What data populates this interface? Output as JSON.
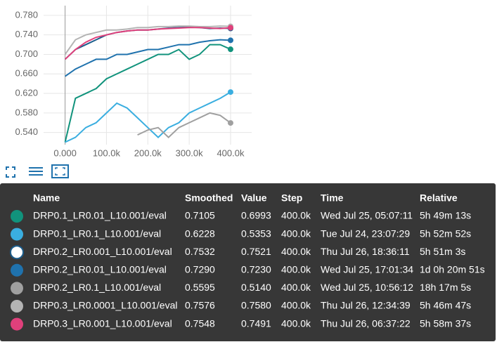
{
  "chart_data": {
    "type": "line",
    "x": [
      0,
      25000,
      50000,
      75000,
      100000,
      125000,
      150000,
      175000,
      200000,
      225000,
      250000,
      275000,
      300000,
      325000,
      350000,
      375000,
      400000
    ],
    "xlim": [
      -52000,
      451000
    ],
    "xticks": [
      {
        "value": 0,
        "label": "0.000"
      },
      {
        "value": 100000,
        "label": "100.0k"
      },
      {
        "value": 200000,
        "label": "200.0k"
      },
      {
        "value": 300000,
        "label": "300.0k"
      },
      {
        "value": 400000,
        "label": "400.0k"
      }
    ],
    "ylim": [
      0.515,
      0.8
    ],
    "yticks": [
      {
        "value": 0.54,
        "label": "0.540"
      },
      {
        "value": 0.58,
        "label": "0.580"
      },
      {
        "value": 0.62,
        "label": "0.620"
      },
      {
        "value": 0.66,
        "label": "0.660"
      },
      {
        "value": 0.7,
        "label": "0.700"
      },
      {
        "value": 0.74,
        "label": "0.740"
      },
      {
        "value": 0.78,
        "label": "0.780"
      }
    ],
    "grid": true,
    "series": [
      {
        "name": "DRP0.1_LR0.01_L10.001/eval",
        "color": "#11937c",
        "values": [
          0.52,
          0.61,
          0.62,
          0.63,
          0.65,
          0.66,
          0.67,
          0.68,
          0.69,
          0.7,
          0.7,
          0.71,
          0.69,
          0.7,
          0.72,
          0.72,
          0.7105
        ]
      },
      {
        "name": "DRP0.1_LR0.1_L10.001/eval",
        "color": "#3aaee0",
        "values": [
          0.52,
          0.53,
          0.55,
          0.56,
          0.58,
          0.6,
          0.59,
          0.57,
          0.55,
          0.53,
          0.55,
          0.56,
          0.58,
          0.59,
          0.6,
          0.61,
          0.6228
        ]
      },
      {
        "name": "DRP0.2_LR0.001_L10.001/eval",
        "color": "#1c5d8c",
        "values": [
          0.69,
          0.71,
          0.72,
          0.73,
          0.74,
          0.745,
          0.748,
          0.75,
          0.75,
          0.752,
          0.754,
          0.755,
          0.756,
          0.755,
          0.753,
          0.754,
          0.7532
        ]
      },
      {
        "name": "DRP0.2_LR0.01_L10.001/eval",
        "color": "#1f72ad",
        "values": [
          0.655,
          0.67,
          0.68,
          0.69,
          0.69,
          0.7,
          0.7,
          0.705,
          0.71,
          0.71,
          0.715,
          0.72,
          0.72,
          0.725,
          0.728,
          0.73,
          0.729
        ]
      },
      {
        "name": "DRP0.2_LR0.1_L10.001/eval",
        "color": "#a0a0a0",
        "values": [
          null,
          null,
          null,
          null,
          null,
          null,
          null,
          0.535,
          0.545,
          0.55,
          0.53,
          0.55,
          0.56,
          0.57,
          0.58,
          0.575,
          0.5595
        ]
      },
      {
        "name": "DRP0.3_LR0.0001_L10.001/eval",
        "color": "#b4b4b4",
        "values": [
          0.7,
          0.73,
          0.74,
          0.745,
          0.75,
          0.75,
          0.752,
          0.755,
          0.755,
          0.757,
          0.757,
          0.758,
          0.758,
          0.757,
          0.757,
          0.758,
          0.7576
        ]
      },
      {
        "name": "DRP0.3_LR0.001_L10.001/eval",
        "color": "#e0407b",
        "values": [
          0.69,
          0.71,
          0.725,
          0.735,
          0.74,
          0.745,
          0.748,
          0.75,
          0.75,
          0.752,
          0.753,
          0.754,
          0.755,
          0.755,
          0.754,
          0.753,
          0.7548
        ]
      }
    ]
  },
  "table": {
    "header": [
      "Name",
      "Smoothed",
      "Value",
      "Step",
      "Time",
      "Relative"
    ],
    "rows": [
      [
        "DRP0.1_LR0.01_L10.001/eval",
        "0.7105",
        "0.6993",
        "400.0k",
        "Wed Jul 25, 05:07:11",
        "5h 49m 13s"
      ],
      [
        "DRP0.1_LR0.1_L10.001/eval",
        "0.6228",
        "0.5353",
        "400.0k",
        "Tue Jul 24, 23:07:29",
        "5h 52m 52s"
      ],
      [
        "DRP0.2_LR0.001_L10.001/eval",
        "0.7532",
        "0.7521",
        "400.0k",
        "Thu Jul 26, 18:36:11",
        "5h 51m 3s"
      ],
      [
        "DRP0.2_LR0.01_L10.001/eval",
        "0.7290",
        "0.7230",
        "400.0k",
        "Wed Jul 25, 17:01:34",
        "1d 0h 20m 51s"
      ],
      [
        "DRP0.2_LR0.1_L10.001/eval",
        "0.5595",
        "0.5140",
        "400.0k",
        "Wed Jul 25, 10:56:12",
        "18h 17m 5s"
      ],
      [
        "DRP0.3_LR0.0001_L10.001/eval",
        "0.7576",
        "0.7580",
        "400.0k",
        "Thu Jul 26, 12:34:39",
        "5h 46m 47s"
      ],
      [
        "DRP0.3_LR0.001_L10.001/eval",
        "0.7548",
        "0.7491",
        "400.0k",
        "Thu Jul 26, 06:37:22",
        "5h 58m 37s"
      ]
    ]
  }
}
